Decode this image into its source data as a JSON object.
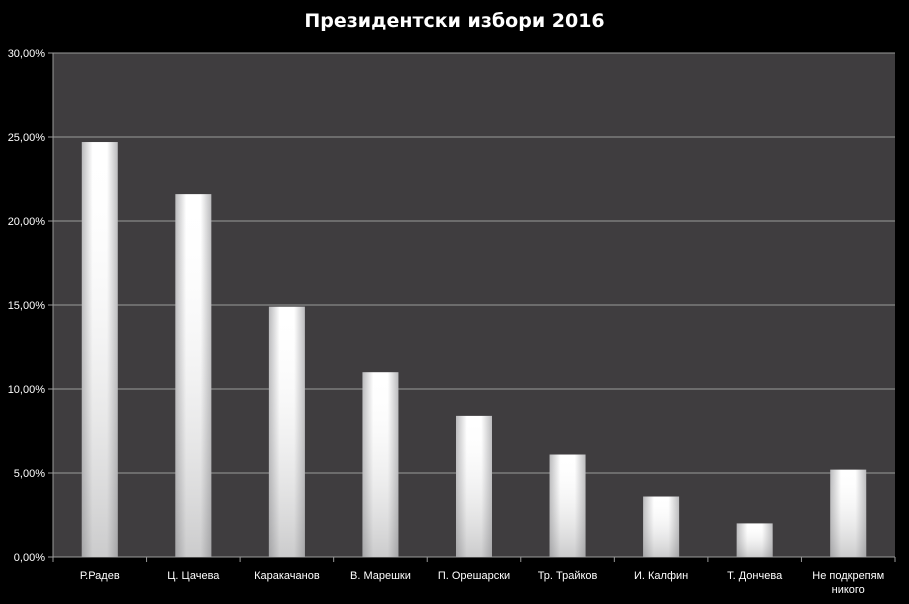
{
  "chart_data": {
    "type": "bar",
    "title": "Президентски избори 2016",
    "categories": [
      "Р.Радев",
      "Ц. Цачева",
      "Каракачанов",
      "В. Марешки",
      "П. Орешарски",
      "Тр. Трайков",
      "И. Калфин",
      "Т. Дончева",
      "Не подкрепям никого"
    ],
    "values": [
      24.7,
      21.6,
      14.9,
      11.0,
      8.4,
      6.1,
      3.6,
      2.0,
      5.2
    ],
    "ylim": [
      0,
      30
    ],
    "yticks": [
      "0,00%",
      "5,00%",
      "10,00%",
      "15,00%",
      "20,00%",
      "25,00%",
      "30,00%"
    ],
    "xlabel": "",
    "ylabel": "",
    "grid": true,
    "legend": "none",
    "colors": {
      "background": "#000000",
      "plot_area": "#3f3d3f",
      "gridline": "#9a9a9a",
      "bar": "#ffffff",
      "text": "#ffffff"
    }
  }
}
